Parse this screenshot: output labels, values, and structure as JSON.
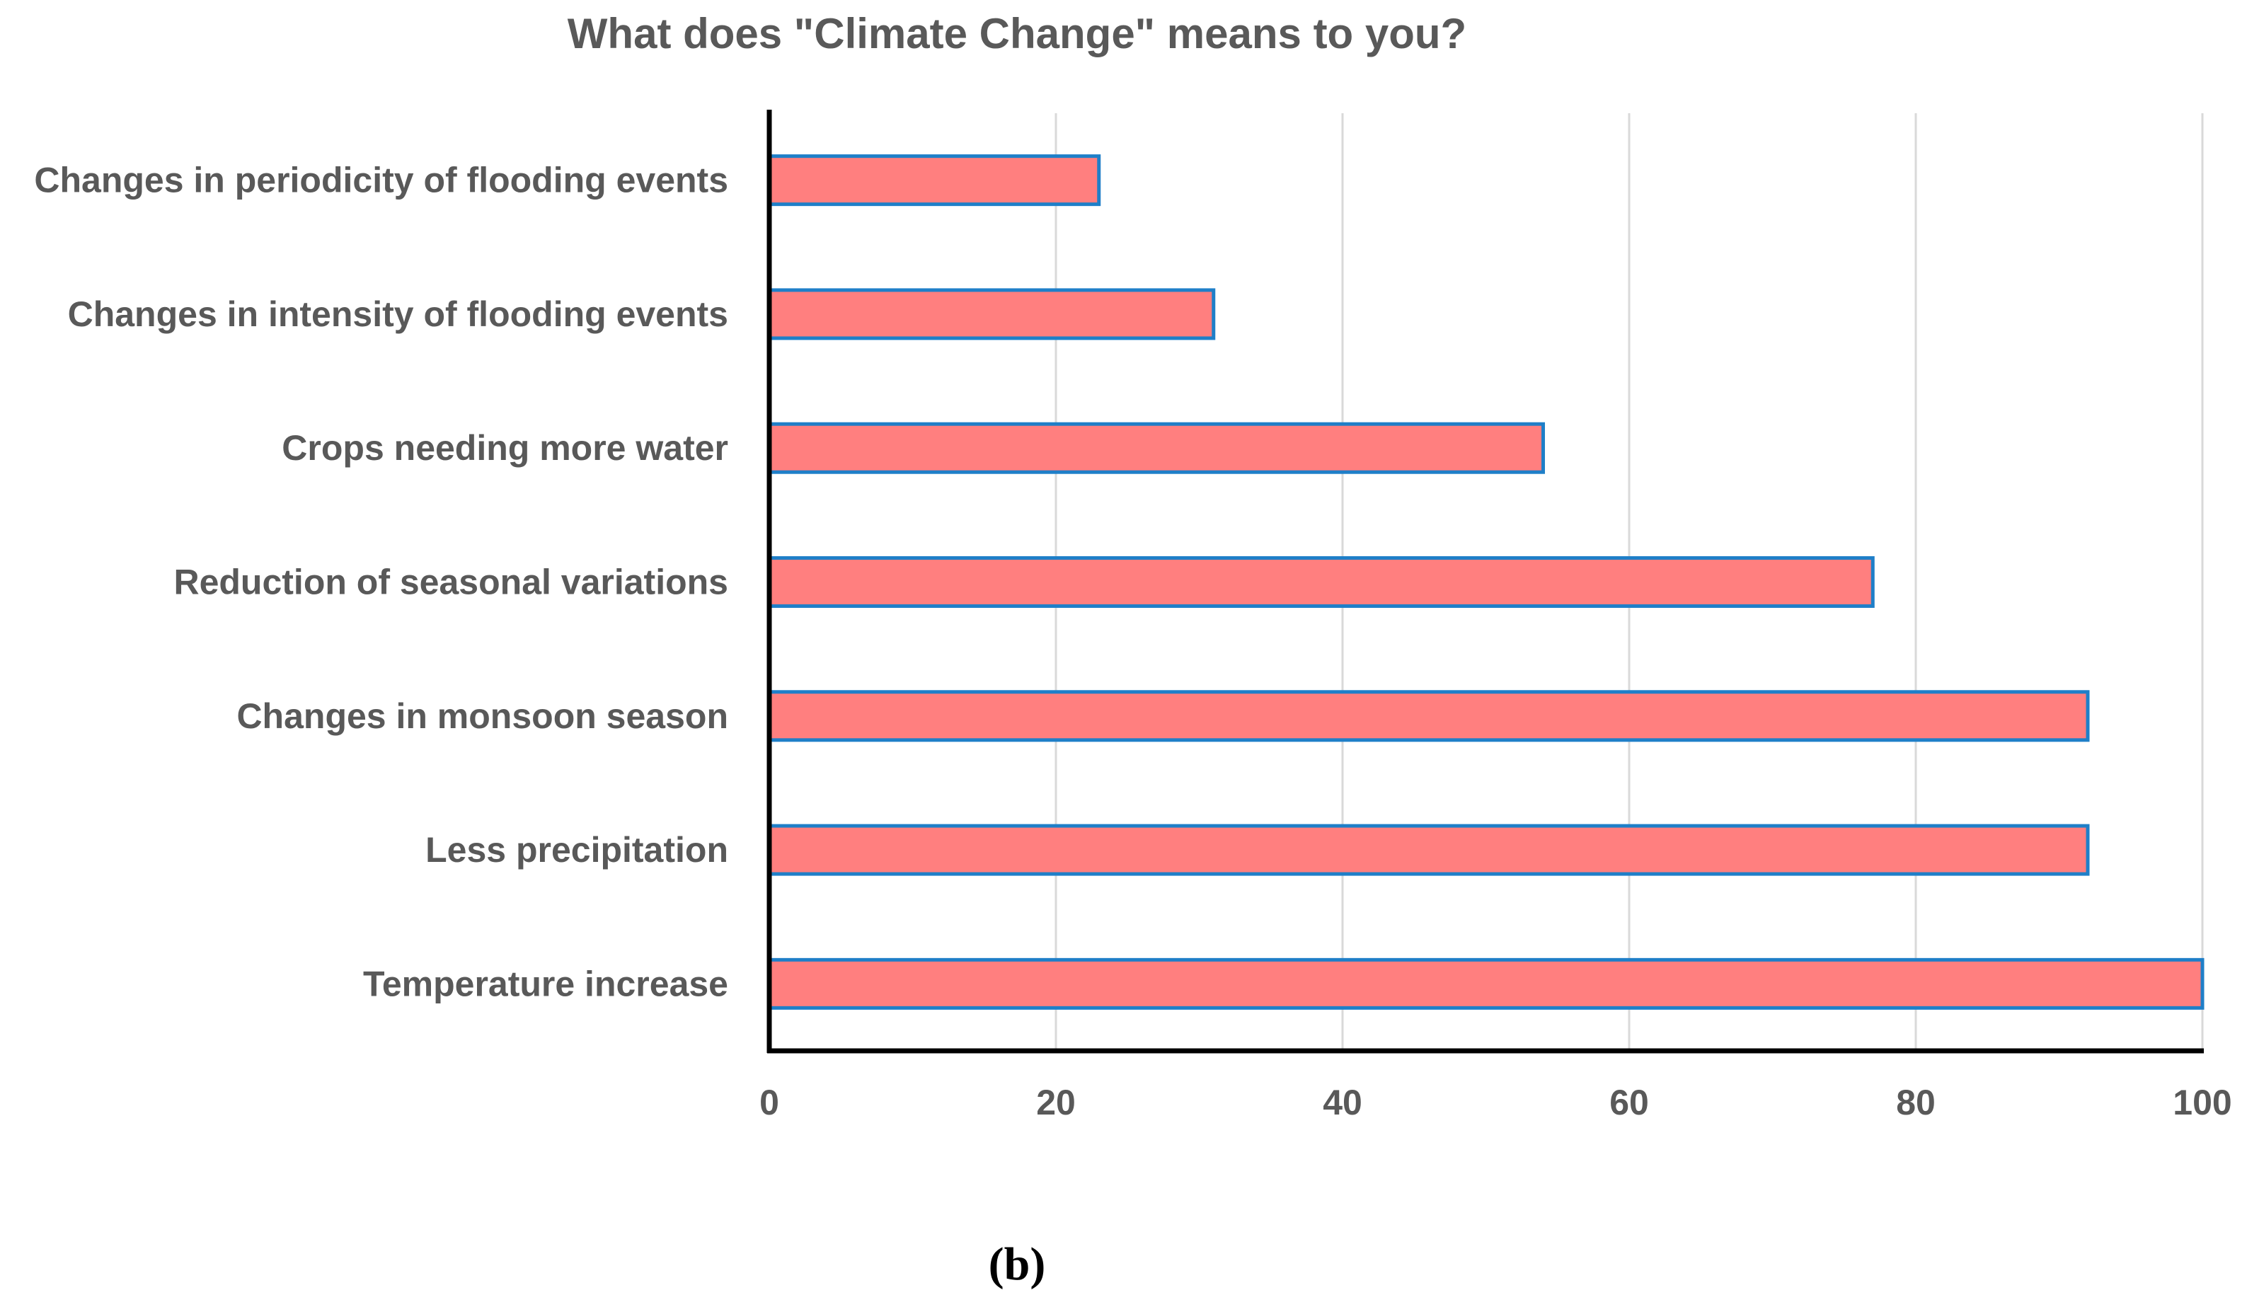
{
  "chart_data": {
    "type": "bar",
    "orientation": "horizontal",
    "title": "What does \"Climate Change\" means to you?",
    "categories": [
      "Changes in periodicity of flooding events",
      "Changes in intensity of flooding events",
      "Crops needing more water",
      "Reduction of seasonal variations",
      "Changes in monsoon season",
      "Less precipitation",
      "Temperature increase"
    ],
    "values": [
      23,
      31,
      54,
      77,
      92,
      92,
      100
    ],
    "xlim": [
      0,
      100
    ],
    "xticks": [
      0,
      20,
      40,
      60,
      80,
      100
    ],
    "tick_labels": [
      "0",
      "20",
      "40",
      "60",
      "80",
      "100"
    ],
    "xlabel": "",
    "ylabel": "",
    "grid": "vertical",
    "legend": "none",
    "bar_fill": "#ff7f7f",
    "bar_stroke": "#1f7fc8",
    "grid_color": "#d9d9d9",
    "axis_color": "#000000"
  },
  "panel_label": "(b)"
}
